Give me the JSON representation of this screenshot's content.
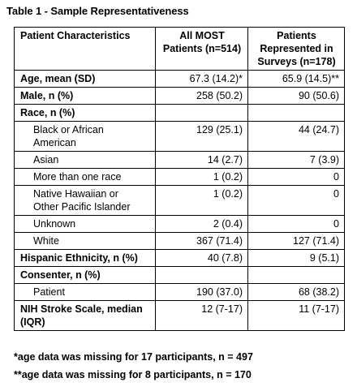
{
  "caption": "Table 1 - Sample Representativeness",
  "table": {
    "headers": {
      "col1": "Patient Characteristics",
      "col2": "All MOST Patients (n=514)",
      "col3": "Patients Represented in Surveys (n=178)"
    },
    "rows": [
      {
        "label": "Age, mean (SD)",
        "all": "67.3 (14.2)*",
        "surveys": "65.9 (14.5)**"
      },
      {
        "label": "Male, n (%)",
        "all": "258 (50.2)",
        "surveys": "90 (50.6)"
      },
      {
        "label": "Race, n (%)",
        "all": "",
        "surveys": ""
      },
      {
        "label": "Black or African American",
        "all": "129 (25.1)",
        "surveys": "44 (24.7)"
      },
      {
        "label": "Asian",
        "all": "14 (2.7)",
        "surveys": "7 (3.9)"
      },
      {
        "label": "More than one race",
        "all": "1 (0.2)",
        "surveys": "0"
      },
      {
        "label": "Native Hawaiian or Other Pacific Islander",
        "all": "1 (0.2)",
        "surveys": "0"
      },
      {
        "label": "Unknown",
        "all": "2 (0.4)",
        "surveys": "0"
      },
      {
        "label": "White",
        "all": "367 (71.4)",
        "surveys": "127 (71.4)"
      },
      {
        "label": "Hispanic Ethnicity, n (%)",
        "all": "40 (7.8)",
        "surveys": "9 (5.1)"
      },
      {
        "label": "Consenter, n (%)",
        "all": "",
        "surveys": ""
      },
      {
        "label": "Patient",
        "all": "190 (37.0)",
        "surveys": "68 (38.2)"
      },
      {
        "label": "NIH Stroke Scale, median (IQR)",
        "all": "12 (7-17)",
        "surveys": "11 (7-17)"
      }
    ]
  },
  "footnotes": [
    "*age data was missing for 17 participants, n = 497",
    "**age data was missing for 8 participants, n = 170"
  ]
}
